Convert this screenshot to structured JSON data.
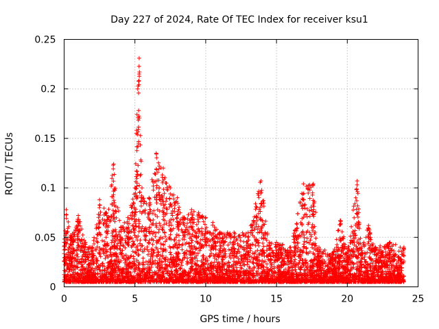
{
  "chart_data": {
    "type": "scatter",
    "title": "Day 227 of 2024, Rate Of TEC Index for receiver ksu1",
    "xlabel": "GPS time / hours",
    "ylabel": "ROTI / TECUs",
    "xlim": [
      0,
      25
    ],
    "ylim": [
      0,
      0.25
    ],
    "x_ticks": [
      0,
      5,
      10,
      15,
      20,
      25
    ],
    "x_tick_labels": [
      "0",
      "5",
      "10",
      "15",
      "20",
      "25"
    ],
    "y_ticks": [
      0,
      0.05,
      0.1,
      0.15,
      0.2,
      0.25
    ],
    "y_tick_labels": [
      "0",
      "0.05",
      "0.1",
      "0.15",
      "0.2",
      "0.25"
    ],
    "grid": true,
    "marker": "+",
    "series": [
      {
        "name": "ROTI",
        "color": "#ff0000",
        "envelope_note": "approximate upper envelope of the dense point cloud (hours, TECU/min)",
        "envelope": [
          [
            0.0,
            0.045
          ],
          [
            0.15,
            0.078
          ],
          [
            0.5,
            0.05
          ],
          [
            1.0,
            0.072
          ],
          [
            1.5,
            0.045
          ],
          [
            2.0,
            0.04
          ],
          [
            2.5,
            0.088
          ],
          [
            3.0,
            0.075
          ],
          [
            3.5,
            0.124
          ],
          [
            4.0,
            0.06
          ],
          [
            4.5,
            0.07
          ],
          [
            5.0,
            0.1
          ],
          [
            5.1,
            0.155
          ],
          [
            5.2,
            0.2
          ],
          [
            5.3,
            0.231
          ],
          [
            5.5,
            0.1
          ],
          [
            6.0,
            0.09
          ],
          [
            6.5,
            0.135
          ],
          [
            7.0,
            0.12
          ],
          [
            7.5,
            0.1
          ],
          [
            8.0,
            0.09
          ],
          [
            8.5,
            0.07
          ],
          [
            9.0,
            0.078
          ],
          [
            9.5,
            0.075
          ],
          [
            10.0,
            0.07
          ],
          [
            10.5,
            0.065
          ],
          [
            11.0,
            0.055
          ],
          [
            12.0,
            0.055
          ],
          [
            13.0,
            0.055
          ],
          [
            13.9,
            0.107
          ],
          [
            14.5,
            0.045
          ],
          [
            15.0,
            0.045
          ],
          [
            16.0,
            0.04
          ],
          [
            16.9,
            0.104
          ],
          [
            17.6,
            0.104
          ],
          [
            18.0,
            0.04
          ],
          [
            19.0,
            0.035
          ],
          [
            19.5,
            0.067
          ],
          [
            20.0,
            0.035
          ],
          [
            20.7,
            0.107
          ],
          [
            21.0,
            0.04
          ],
          [
            21.5,
            0.062
          ],
          [
            22.0,
            0.04
          ],
          [
            23.0,
            0.045
          ],
          [
            24.0,
            0.04
          ]
        ],
        "baseline": 0.005
      }
    ]
  }
}
